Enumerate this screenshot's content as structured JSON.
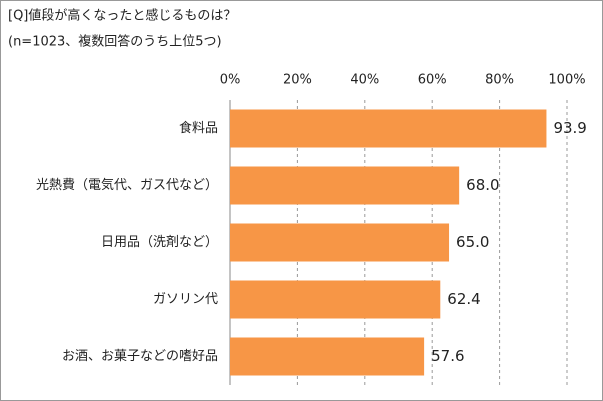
{
  "chart_data": {
    "type": "bar",
    "orientation": "horizontal",
    "title": "[Q]値段が高くなったと感じるものは？",
    "subtitle": "(n=1023、複数回答のうち上位5つ)",
    "categories": [
      "食料品",
      "光熱費（電気代、ガス代など）",
      "日用品（洗剤など）",
      "ガソリン代",
      "お酒、お菓子などの嗜好品"
    ],
    "values": [
      93.9,
      68.0,
      65.0,
      62.4,
      57.6
    ],
    "value_labels": [
      "93.9",
      "68.0",
      "65.0",
      "62.4",
      "57.6"
    ],
    "color": "#f79646",
    "xlim": [
      0,
      100
    ],
    "xticks": [
      {
        "value": 0,
        "label": "0%"
      },
      {
        "value": 20,
        "label": "20%"
      },
      {
        "value": 40,
        "label": "40%"
      },
      {
        "value": 60,
        "label": "60%"
      },
      {
        "value": 80,
        "label": "80%"
      },
      {
        "value": 100,
        "label": "100%"
      }
    ],
    "grid": true
  }
}
